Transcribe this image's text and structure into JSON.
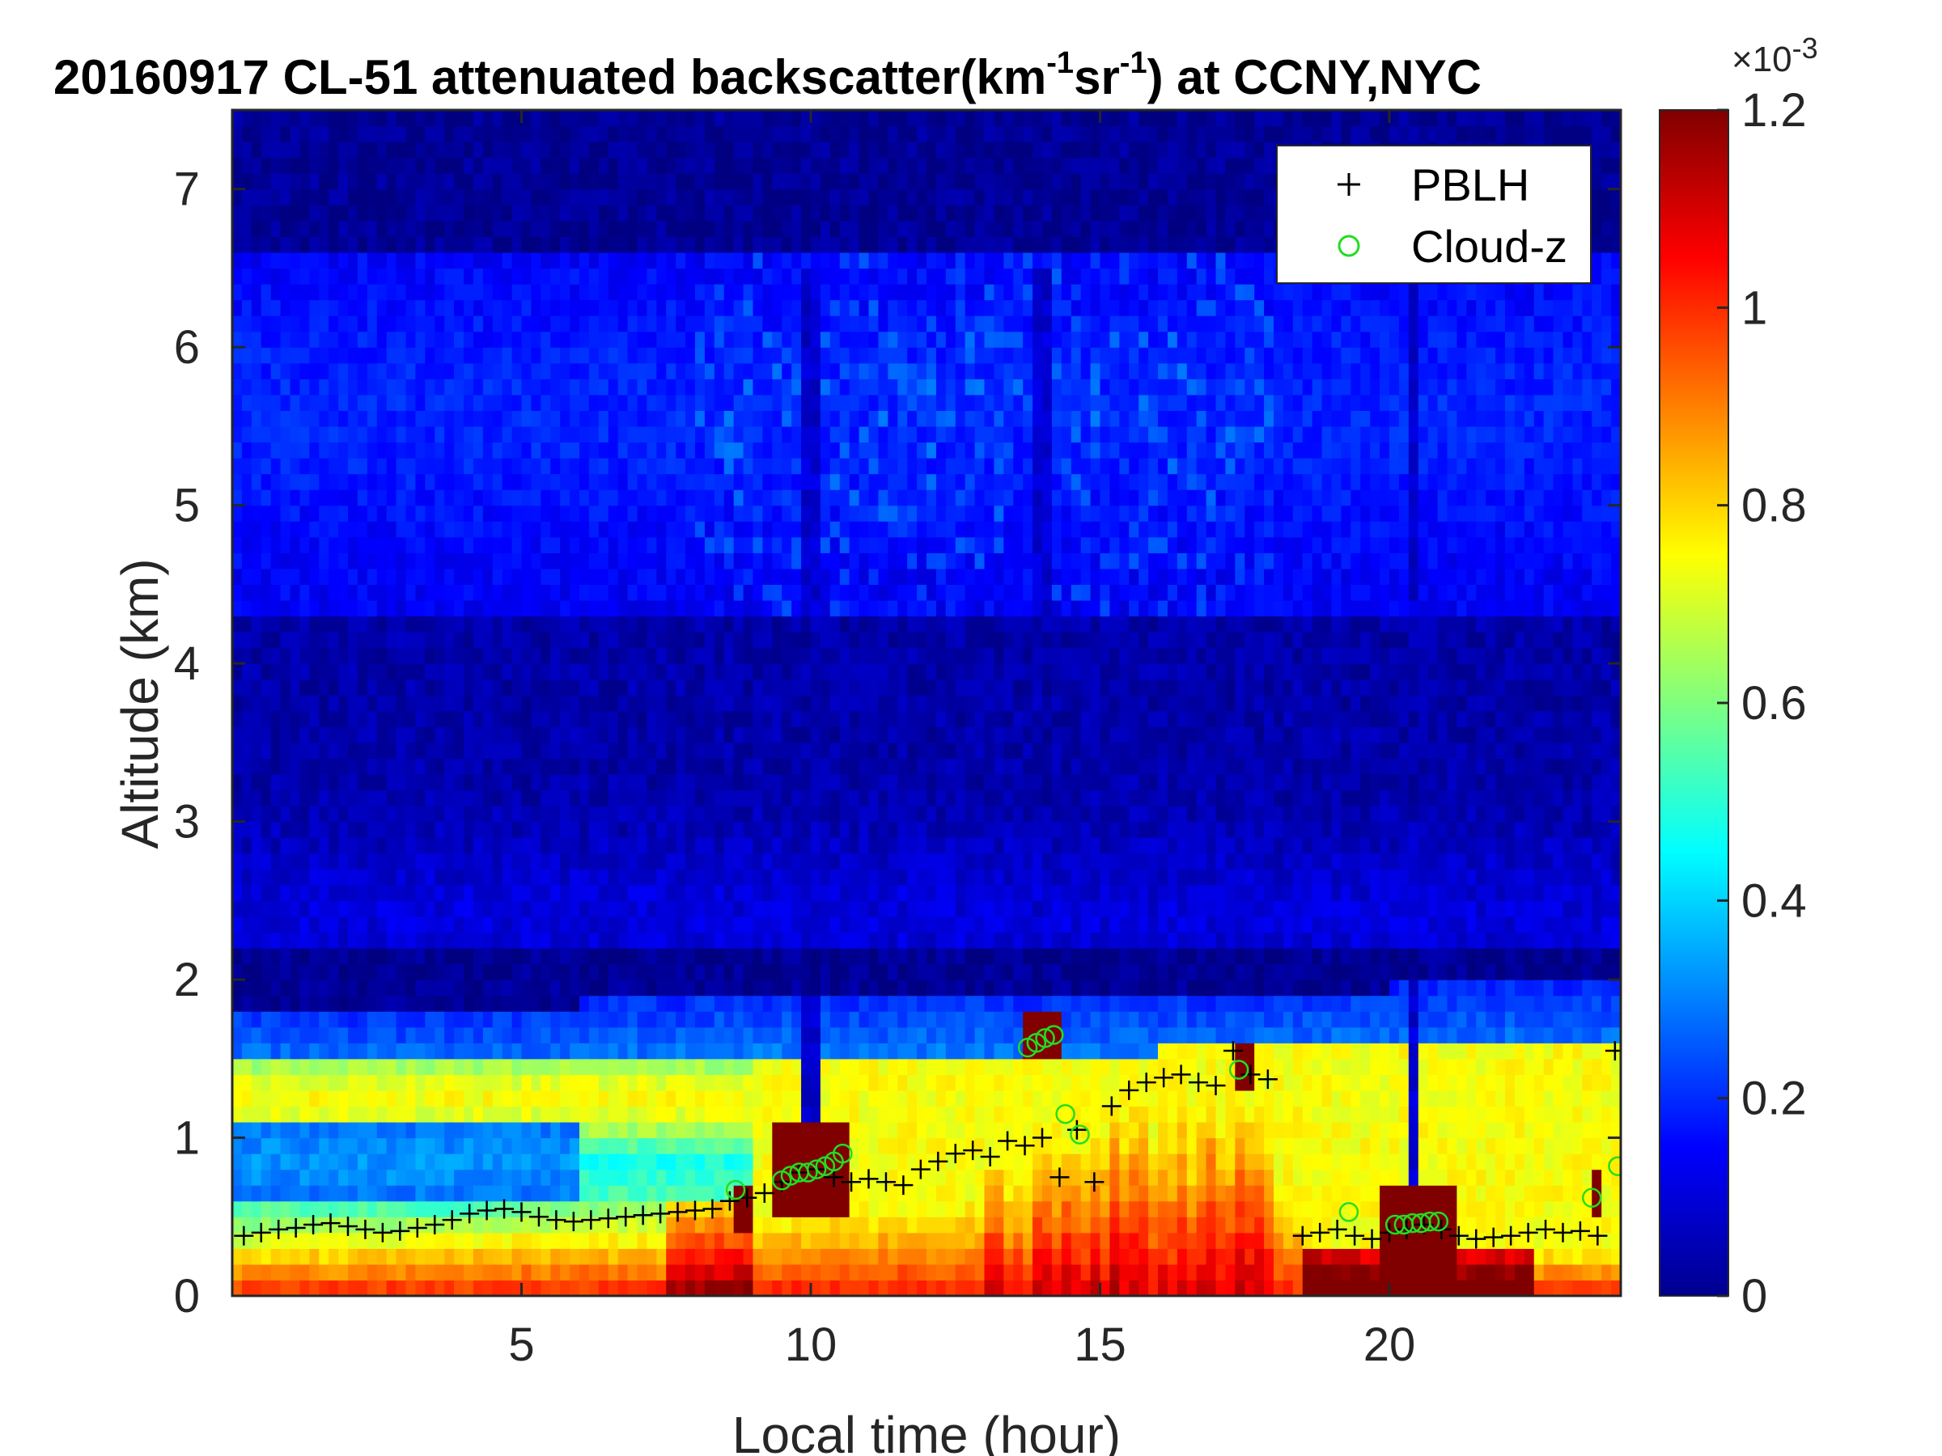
{
  "chart_data": {
    "type": "heatmap",
    "title": {
      "main": "20160917  CL-51 attenuated backscatter(km",
      "sup1": "-1",
      "mid": "sr",
      "sup2": "-1",
      "tail": ") at CCNY,NYC"
    },
    "xlabel": "Local time (hour)",
    "ylabel": "Altitude (km)",
    "xlim": [
      0,
      24
    ],
    "ylim": [
      0,
      7.5
    ],
    "x_ticks": [
      5,
      10,
      15,
      20
    ],
    "y_ticks": [
      0,
      1,
      2,
      3,
      4,
      5,
      6,
      7
    ],
    "colormap": "jet",
    "colorbar": {
      "range": [
        0,
        0.0012
      ],
      "ticks": [
        0,
        0.2,
        0.4,
        0.6,
        0.8,
        1,
        1.2
      ],
      "exponent_label": "×10",
      "exponent_sup": "-3"
    },
    "legend": {
      "placement": "top-right",
      "entries": [
        {
          "label": "PBLH",
          "marker": "+",
          "color": "#000000"
        },
        {
          "label": "Cloud-z",
          "marker": "o",
          "color": "#22dd22"
        }
      ]
    },
    "series": [
      {
        "name": "PBLH",
        "x": [
          0.2,
          0.5,
          0.8,
          1.1,
          1.4,
          1.7,
          2.0,
          2.3,
          2.6,
          2.9,
          3.2,
          3.5,
          3.8,
          4.1,
          4.4,
          4.7,
          5.0,
          5.3,
          5.6,
          5.9,
          6.2,
          6.5,
          6.8,
          7.1,
          7.4,
          7.7,
          8.0,
          8.3,
          8.6,
          8.9,
          9.2,
          9.5,
          9.8,
          10.1,
          10.4,
          10.7,
          11.0,
          11.3,
          11.6,
          11.9,
          12.2,
          12.5,
          12.8,
          13.1,
          13.4,
          13.7,
          14.0,
          14.3,
          14.6,
          14.9,
          15.2,
          15.5,
          15.8,
          16.1,
          16.4,
          16.7,
          17.0,
          17.3,
          17.6,
          17.9,
          18.5,
          18.8,
          19.1,
          19.4,
          19.7,
          20.0,
          20.3,
          20.6,
          20.9,
          21.2,
          21.5,
          21.8,
          22.1,
          22.4,
          22.7,
          23.0,
          23.3,
          23.6,
          23.9
        ],
        "y": [
          0.38,
          0.4,
          0.42,
          0.43,
          0.45,
          0.46,
          0.44,
          0.42,
          0.4,
          0.41,
          0.43,
          0.45,
          0.48,
          0.52,
          0.54,
          0.55,
          0.53,
          0.5,
          0.48,
          0.47,
          0.48,
          0.49,
          0.5,
          0.51,
          0.52,
          0.53,
          0.54,
          0.55,
          0.6,
          0.62,
          0.65,
          0.72,
          0.78,
          0.8,
          0.75,
          0.72,
          0.74,
          0.72,
          0.7,
          0.8,
          0.85,
          0.9,
          0.92,
          0.88,
          0.98,
          0.95,
          1.0,
          0.75,
          1.05,
          0.72,
          1.2,
          1.3,
          1.35,
          1.38,
          1.4,
          1.35,
          1.33,
          1.55,
          1.4,
          1.37,
          0.38,
          0.4,
          0.42,
          0.38,
          0.36,
          0.4,
          0.42,
          0.45,
          0.42,
          0.38,
          0.36,
          0.37,
          0.38,
          0.4,
          0.42,
          0.4,
          0.41,
          0.38,
          1.55
        ]
      },
      {
        "name": "Cloud-z",
        "x": [
          8.7,
          9.5,
          9.65,
          9.8,
          9.95,
          10.1,
          10.25,
          10.4,
          10.55,
          13.75,
          13.9,
          14.05,
          14.2,
          14.4,
          14.65,
          17.4,
          19.3,
          20.1,
          20.25,
          20.4,
          20.55,
          20.7,
          20.85,
          23.5,
          23.95
        ],
        "y": [
          0.67,
          0.73,
          0.76,
          0.78,
          0.78,
          0.8,
          0.82,
          0.85,
          0.9,
          1.57,
          1.6,
          1.63,
          1.65,
          1.15,
          1.02,
          1.43,
          0.53,
          0.45,
          0.45,
          0.46,
          0.46,
          0.47,
          0.47,
          0.62,
          0.82
        ]
      }
    ]
  }
}
